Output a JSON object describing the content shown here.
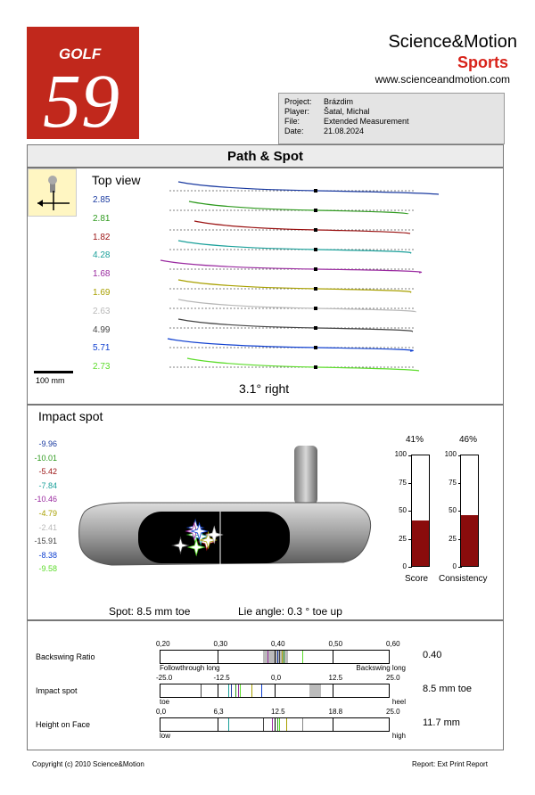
{
  "logo": {
    "text_top": "GOLF",
    "text_main": "59"
  },
  "brand": {
    "name": "Science&Motion",
    "sub": "Sports",
    "url": "www.scienceandmotion.com"
  },
  "info": {
    "rows": [
      {
        "key": "Project:",
        "val": "Brázdim"
      },
      {
        "key": "Player:",
        "val": "Šatal, Michal"
      },
      {
        "key": "File:",
        "val": "Extended Measurement"
      },
      {
        "key": "Date:",
        "val": "21.08.2024"
      }
    ]
  },
  "path_spot": {
    "title": "Path & Spot",
    "top_view_label": "Top view",
    "scale_label": "100 mm",
    "summary": "3.1° right",
    "strokes": [
      {
        "value": "2.85",
        "color": "#1a3aa0"
      },
      {
        "value": "2.81",
        "color": "#2e9a1e"
      },
      {
        "value": "1.82",
        "color": "#9a1111"
      },
      {
        "value": "4.28",
        "color": "#1aa09a"
      },
      {
        "value": "1.68",
        "color": "#9a2aa0"
      },
      {
        "value": "1.69",
        "color": "#a8a000"
      },
      {
        "value": "2.63",
        "color": "#b8b8b8"
      },
      {
        "value": "4.99",
        "color": "#444444"
      },
      {
        "value": "5.71",
        "color": "#1040d0"
      },
      {
        "value": "2.73",
        "color": "#5cdc2a"
      }
    ]
  },
  "impact": {
    "title": "Impact spot",
    "values": [
      {
        "value": "-9.96",
        "color": "#1a3aa0"
      },
      {
        "value": "-10.01",
        "color": "#2e9a1e"
      },
      {
        "value": "-5.42",
        "color": "#9a1111"
      },
      {
        "value": "-7.84",
        "color": "#1aa09a"
      },
      {
        "value": "-10.46",
        "color": "#9a2aa0"
      },
      {
        "value": "-4.79",
        "color": "#a8a000"
      },
      {
        "value": "-2.41",
        "color": "#b8b8b8"
      },
      {
        "value": "-15.91",
        "color": "#444444"
      },
      {
        "value": "-8.38",
        "color": "#1040d0"
      },
      {
        "value": "-9.58",
        "color": "#5cdc2a"
      }
    ],
    "spot_text": "Spot: 8.5 mm toe",
    "lie_text": "Lie angle: 0.3 ° toe up",
    "score": {
      "label": "Score",
      "percent": "41%",
      "value": 41
    },
    "consistency": {
      "label": "Consistency",
      "percent": "46%",
      "value": 46
    },
    "scale": [
      "100",
      "75",
      "50",
      "25",
      "0"
    ]
  },
  "metrics": {
    "backswing": {
      "label": "Backswing Ratio",
      "value": "0.40",
      "ticks": [
        "0,20",
        "0,30",
        "0,40",
        "0,50",
        "0,60"
      ],
      "left_note": "Followthrough long",
      "right_note": "Backswing long"
    },
    "impact": {
      "label": "Impact spot",
      "value": "8.5 mm toe",
      "ticks": [
        "-25.0",
        "-12.5",
        "0,0",
        "12.5",
        "25.0"
      ],
      "left_note": "toe",
      "right_note": "heel"
    },
    "height": {
      "label": "Height on Face",
      "value": "11.7 mm",
      "ticks": [
        "0,0",
        "6,3",
        "12.5",
        "18.8",
        "25.0"
      ],
      "left_note": "low",
      "right_note": "high"
    }
  },
  "footer": {
    "left": "Copyright (c) 2010 Science&Motion",
    "right": "Report: Ext Print Report"
  }
}
